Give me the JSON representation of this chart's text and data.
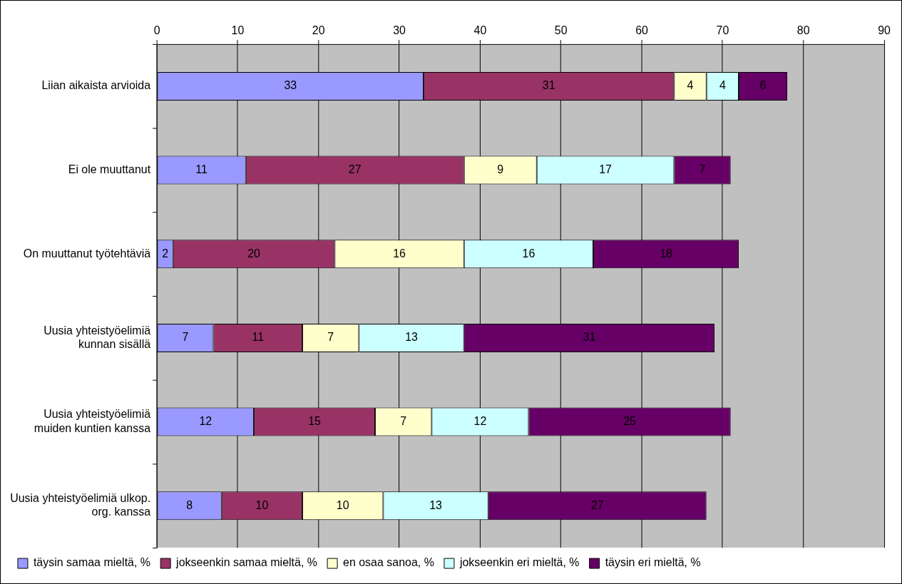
{
  "chart_data": {
    "type": "bar",
    "orientation": "horizontal",
    "stacked": true,
    "categories": [
      "Liian aikaista arvioida",
      "Ei ole muuttanut",
      "On muuttanut työtehtäviä",
      "Uusia yhteistyöelimiä\nkunnan sisällä",
      "Uusia yhteistyöelimiä\nmuiden kuntien kanssa",
      "Uusia yhteistyöelimiä ulkop.\norg. kanssa"
    ],
    "series": [
      {
        "name": "täysin samaa mieltä, %",
        "color": "#9999ff",
        "values": [
          33,
          11,
          2,
          7,
          12,
          8
        ]
      },
      {
        "name": "jokseenkin samaa mieltä, %",
        "color": "#993366",
        "values": [
          31,
          27,
          20,
          11,
          15,
          10
        ]
      },
      {
        "name": "en osaa sanoa, %",
        "color": "#ffffcc",
        "values": [
          4,
          9,
          16,
          7,
          7,
          10
        ]
      },
      {
        "name": "jokseenkin eri mieltä, %",
        "color": "#ccffff",
        "values": [
          4,
          17,
          16,
          13,
          12,
          13
        ]
      },
      {
        "name": "täysin eri mieltä, %",
        "color": "#660066",
        "values": [
          6,
          7,
          18,
          31,
          25,
          27
        ]
      }
    ],
    "xlim": [
      0,
      90
    ],
    "xticks": [
      0,
      10,
      20,
      30,
      40,
      50,
      60,
      70,
      80,
      90
    ],
    "grid": "x",
    "legend": "bottom",
    "data_labels": true
  }
}
